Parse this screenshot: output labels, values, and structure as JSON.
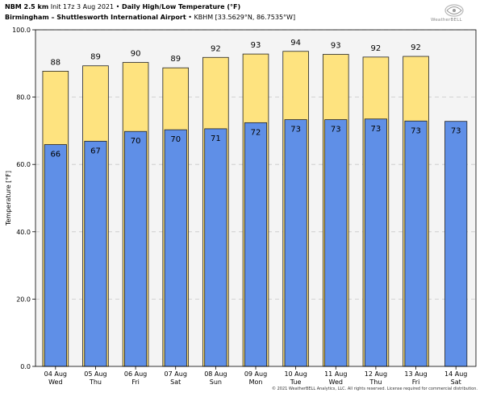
{
  "header": {
    "model": "NBM 2.5 km",
    "init": "Init 17z 3 Aug 2021",
    "bullet": "•",
    "title": "Daily High/Low Temperature (°F)",
    "station": "Birmingham – Shuttlesworth International Airport",
    "station_code": "• KBHM [33.5629°N, 86.7535°W]"
  },
  "logo": {
    "text": "WeatherBELL",
    "icon": "swirl-logo-icon"
  },
  "footer": "© 2021 WeatherBELL Analytics, LLC. All rights reserved. License required for commercial distribution.",
  "colors": {
    "high": "#fee37f",
    "low": "#5f8fe7",
    "plot_bg": "#f4f4f4",
    "bar_edge": "#222222"
  },
  "chart_data": {
    "type": "bar",
    "ylabel": "Temperature [°F]",
    "ylim": [
      0,
      100
    ],
    "yticks": [
      "0.0",
      "20.0",
      "40.0",
      "60.0",
      "80.0",
      "100.0"
    ],
    "grid": true,
    "categories": [
      "04 Aug",
      "05 Aug",
      "06 Aug",
      "07 Aug",
      "08 Aug",
      "09 Aug",
      "10 Aug",
      "11 Aug",
      "12 Aug",
      "13 Aug",
      "14 Aug"
    ],
    "weekdays": [
      "Wed",
      "Thu",
      "Fri",
      "Sat",
      "Sun",
      "Mon",
      "Tue",
      "Wed",
      "Thu",
      "Fri",
      "Sat"
    ],
    "series": [
      {
        "values": [
          87.7,
          89.3,
          90.3,
          88.7,
          91.8,
          92.8,
          93.6,
          92.7,
          91.9,
          92.1,
          null
        ],
        "labels": [
          "88",
          "89",
          "90",
          "89",
          "92",
          "93",
          "94",
          "93",
          "92",
          "92",
          ""
        ]
      },
      {
        "values": [
          65.9,
          66.9,
          69.8,
          70.3,
          70.6,
          72.4,
          73.3,
          73.3,
          73.5,
          72.9,
          72.8
        ],
        "labels": [
          "66",
          "67",
          "70",
          "70",
          "71",
          "72",
          "73",
          "73",
          "73",
          "73",
          "73"
        ]
      }
    ]
  }
}
